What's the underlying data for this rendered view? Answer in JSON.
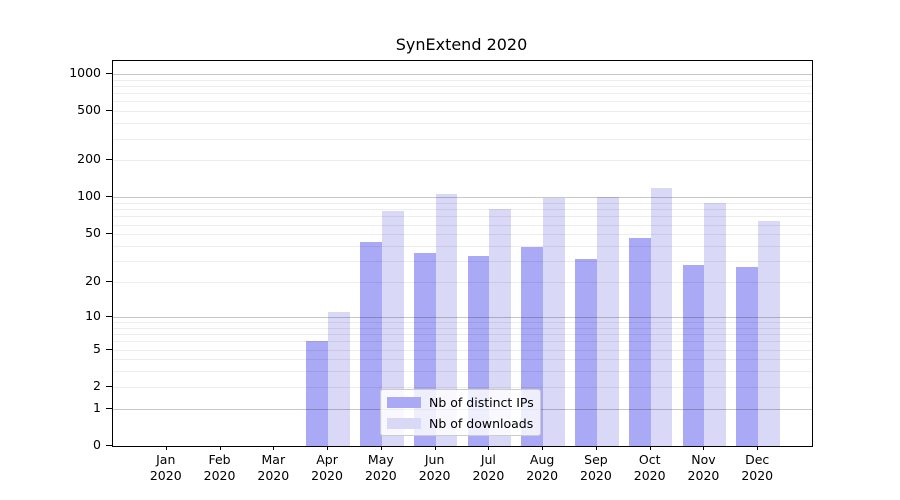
{
  "title": "SynExtend 2020",
  "chart_data": {
    "type": "bar",
    "title": "SynExtend 2020",
    "scale": "log10(value+1)",
    "categories": [
      {
        "month": "Jan",
        "year": "2020"
      },
      {
        "month": "Feb",
        "year": "2020"
      },
      {
        "month": "Mar",
        "year": "2020"
      },
      {
        "month": "Apr",
        "year": "2020"
      },
      {
        "month": "May",
        "year": "2020"
      },
      {
        "month": "Jun",
        "year": "2020"
      },
      {
        "month": "Jul",
        "year": "2020"
      },
      {
        "month": "Aug",
        "year": "2020"
      },
      {
        "month": "Sep",
        "year": "2020"
      },
      {
        "month": "Oct",
        "year": "2020"
      },
      {
        "month": "Nov",
        "year": "2020"
      },
      {
        "month": "Dec",
        "year": "2020"
      }
    ],
    "series": [
      {
        "name": "Nb of distinct IPs",
        "color": "#a9a9f5",
        "values": [
          0,
          0,
          0,
          6,
          43,
          35,
          33,
          39,
          31,
          47,
          28,
          27
        ]
      },
      {
        "name": "Nb of downloads",
        "color": "#d9d9f7",
        "values": [
          0,
          0,
          0,
          11,
          78,
          107,
          80,
          99,
          100,
          119,
          90,
          64
        ]
      }
    ],
    "y_ticks": [
      0,
      1,
      2,
      5,
      10,
      20,
      50,
      100,
      200,
      500,
      1000
    ],
    "ylim": [
      0,
      1300
    ],
    "grid_major_values": [
      1,
      10,
      100,
      1000
    ],
    "grid_minor_multipliers": [
      2,
      3,
      4,
      5,
      6,
      7,
      8,
      9
    ],
    "grid_minor_decades": [
      1,
      10,
      100
    ],
    "legend_position": "lower center",
    "xlabel": "",
    "ylabel": ""
  }
}
